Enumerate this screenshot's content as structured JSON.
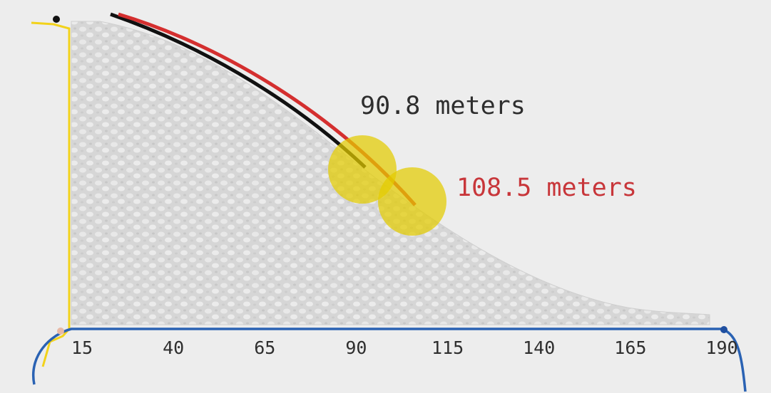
{
  "axis": {
    "ticks": [
      15,
      40,
      65,
      90,
      115,
      140,
      165,
      190
    ]
  },
  "annotations": {
    "black_line": "90.8 meters",
    "red_line": "108.5 meters"
  }
}
